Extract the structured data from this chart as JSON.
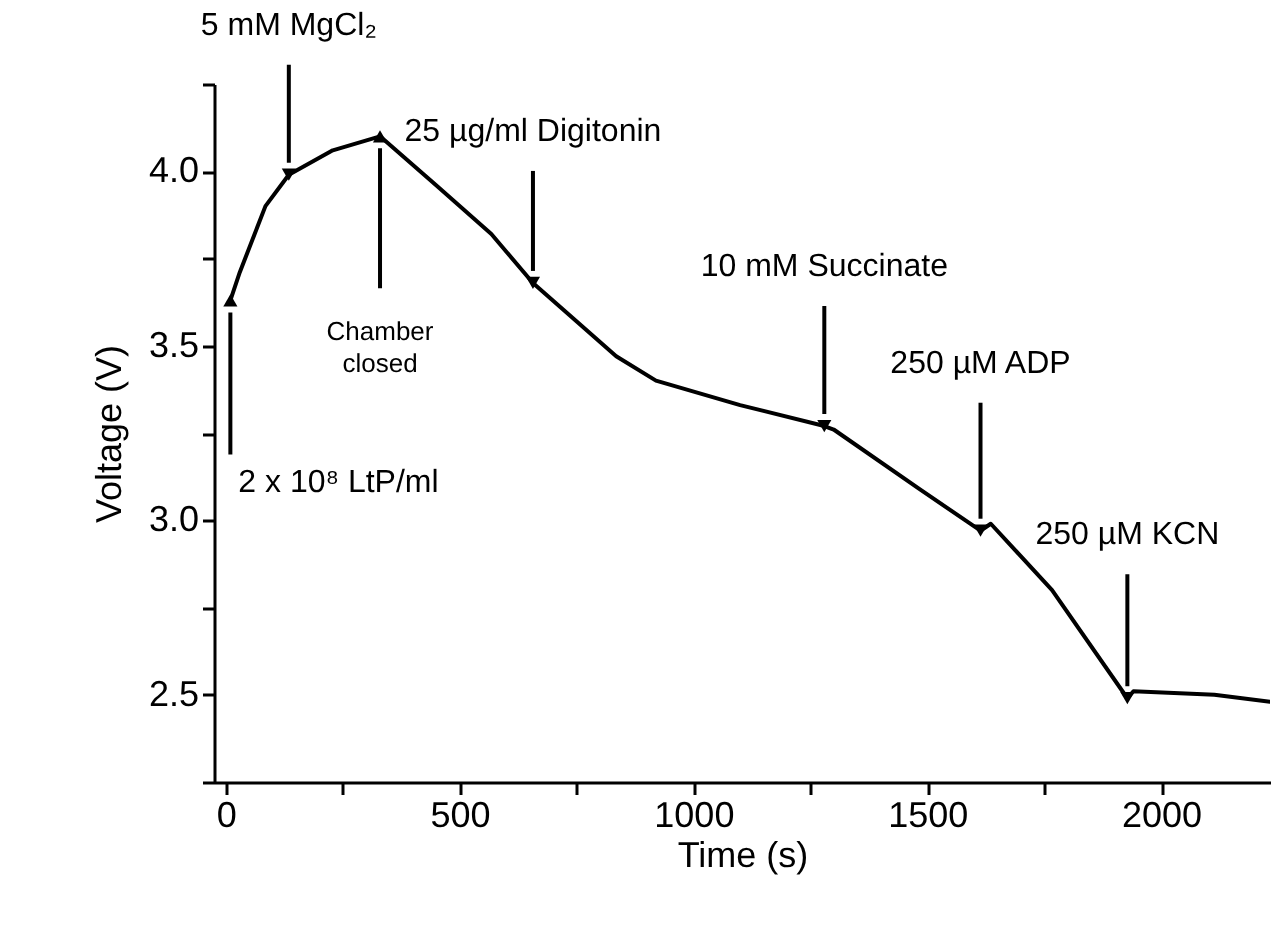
{
  "chart_data": {
    "type": "line",
    "xlabel": "Time (s)",
    "ylabel": "Voltage (V)",
    "x": [
      10,
      30,
      85,
      135,
      229,
      330,
      450,
      568,
      657,
      750,
      835,
      920,
      1100,
      1280,
      1300,
      1483,
      1614,
      1636,
      1767,
      1928,
      1941,
      2114,
      2233
    ],
    "series": [
      {
        "color": "#000000",
        "values": [
          3.63,
          3.71,
          3.9,
          3.99,
          4.06,
          4.1,
          3.96,
          3.82,
          3.68,
          3.57,
          3.47,
          3.4,
          3.33,
          3.27,
          3.26,
          3.09,
          2.97,
          2.99,
          2.8,
          2.49,
          2.51,
          2.5,
          2.48
        ]
      }
    ],
    "xlim": [
      -25,
      2233
    ],
    "xticks": [
      0,
      {
        "value": 250,
        "label": null
      },
      500,
      {
        "value": 750,
        "label": null
      },
      1000,
      {
        "value": 1250,
        "label": null
      },
      1500,
      {
        "value": 1750,
        "label": null
      },
      2000
    ],
    "ylim": [
      2.25,
      4.25
    ],
    "yticks": [
      {
        "value": 2.25,
        "label": null
      },
      {
        "value": 2.5,
        "label": "2.5"
      },
      {
        "value": 2.75,
        "label": null
      },
      {
        "value": 3,
        "label": "3.0"
      },
      {
        "value": 3.25,
        "label": null
      },
      {
        "value": 3.5,
        "label": "3.5"
      },
      {
        "value": 3.75,
        "label": null
      },
      {
        "value": 4,
        "label": "4.0"
      },
      {
        "value": 4.25,
        "label": null
      }
    ],
    "annotations": [
      {
        "text": "2 x 10⁸ LtP/ml",
        "x": 10,
        "y": 3.63
      },
      {
        "text": "5 mM MgCl₂",
        "x": 135,
        "y": 3.99
      },
      {
        "text": "Chamber\nclosed",
        "x": 330,
        "y": 4.1
      },
      {
        "text": "25 µg/ml Digitonin",
        "x": 657,
        "y": 3.68
      },
      {
        "text": "10 mM Succinate",
        "x": 1280,
        "y": 3.27
      },
      {
        "text": "250 µM ADP",
        "x": 1614,
        "y": 2.97
      },
      {
        "text": "250 µM KCN",
        "x": 1928,
        "y": 2.49
      }
    ],
    "grid": false,
    "legend": false,
    "marker": "none",
    "line_style": "solid"
  }
}
